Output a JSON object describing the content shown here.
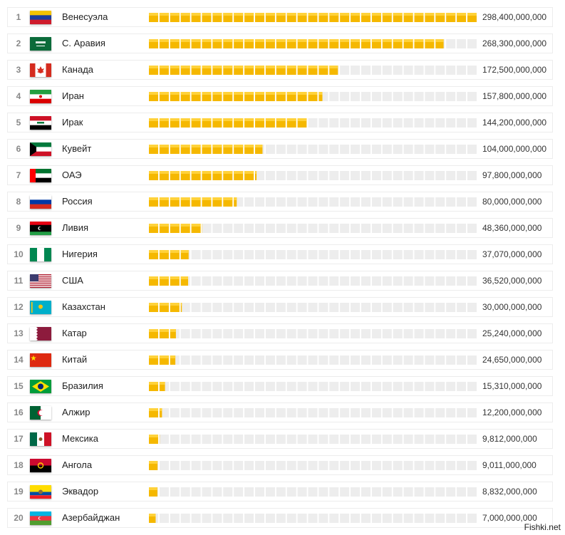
{
  "chart_data": {
    "type": "bar",
    "orientation": "horizontal",
    "max": 298400000000,
    "items": [
      {
        "rank": "1",
        "name": "Венесуэла",
        "value": 298400000000,
        "value_label": "298,400,000,000",
        "flag": "venezuela-flag"
      },
      {
        "rank": "2",
        "name": "С. Аравия",
        "value": 268300000000,
        "value_label": "268,300,000,000",
        "flag": "saudi-arabia-flag"
      },
      {
        "rank": "3",
        "name": "Канада",
        "value": 172500000000,
        "value_label": "172,500,000,000",
        "flag": "canada-flag"
      },
      {
        "rank": "4",
        "name": "Иран",
        "value": 157800000000,
        "value_label": "157,800,000,000",
        "flag": "iran-flag"
      },
      {
        "rank": "5",
        "name": "Ирак",
        "value": 144200000000,
        "value_label": "144,200,000,000",
        "flag": "iraq-flag"
      },
      {
        "rank": "6",
        "name": "Кувейт",
        "value": 104000000000,
        "value_label": "104,000,000,000",
        "flag": "kuwait-flag"
      },
      {
        "rank": "7",
        "name": "ОАЭ",
        "value": 97800000000,
        "value_label": "97,800,000,000",
        "flag": "uae-flag"
      },
      {
        "rank": "8",
        "name": "Россия",
        "value": 80000000000,
        "value_label": "80,000,000,000",
        "flag": "russia-flag"
      },
      {
        "rank": "9",
        "name": "Ливия",
        "value": 48360000000,
        "value_label": "48,360,000,000",
        "flag": "libya-flag"
      },
      {
        "rank": "10",
        "name": "Нигерия",
        "value": 37070000000,
        "value_label": "37,070,000,000",
        "flag": "nigeria-flag"
      },
      {
        "rank": "11",
        "name": "США",
        "value": 36520000000,
        "value_label": "36,520,000,000",
        "flag": "usa-flag"
      },
      {
        "rank": "12",
        "name": "Казахстан",
        "value": 30000000000,
        "value_label": "30,000,000,000",
        "flag": "kazakhstan-flag"
      },
      {
        "rank": "13",
        "name": "Катар",
        "value": 25240000000,
        "value_label": "25,240,000,000",
        "flag": "qatar-flag"
      },
      {
        "rank": "14",
        "name": "Китай",
        "value": 24650000000,
        "value_label": "24,650,000,000",
        "flag": "china-flag"
      },
      {
        "rank": "15",
        "name": "Бразилия",
        "value": 15310000000,
        "value_label": "15,310,000,000",
        "flag": "brazil-flag"
      },
      {
        "rank": "16",
        "name": "Алжир",
        "value": 12200000000,
        "value_label": "12,200,000,000",
        "flag": "algeria-flag"
      },
      {
        "rank": "17",
        "name": "Мексика",
        "value": 9812000000,
        "value_label": "9,812,000,000",
        "flag": "mexico-flag"
      },
      {
        "rank": "18",
        "name": "Ангола",
        "value": 9011000000,
        "value_label": "9,011,000,000",
        "flag": "angola-flag"
      },
      {
        "rank": "19",
        "name": "Эквадор",
        "value": 8832000000,
        "value_label": "8,832,000,000",
        "flag": "ecuador-flag"
      },
      {
        "rank": "20",
        "name": "Азербайджан",
        "value": 7000000000,
        "value_label": "7,000,000,000",
        "flag": "azerbaijan-flag"
      }
    ],
    "colors": {
      "fill": "#f5b800",
      "fill_light": "#ffd23a",
      "empty": "#ededed"
    }
  },
  "watermark": "Fishki.net"
}
